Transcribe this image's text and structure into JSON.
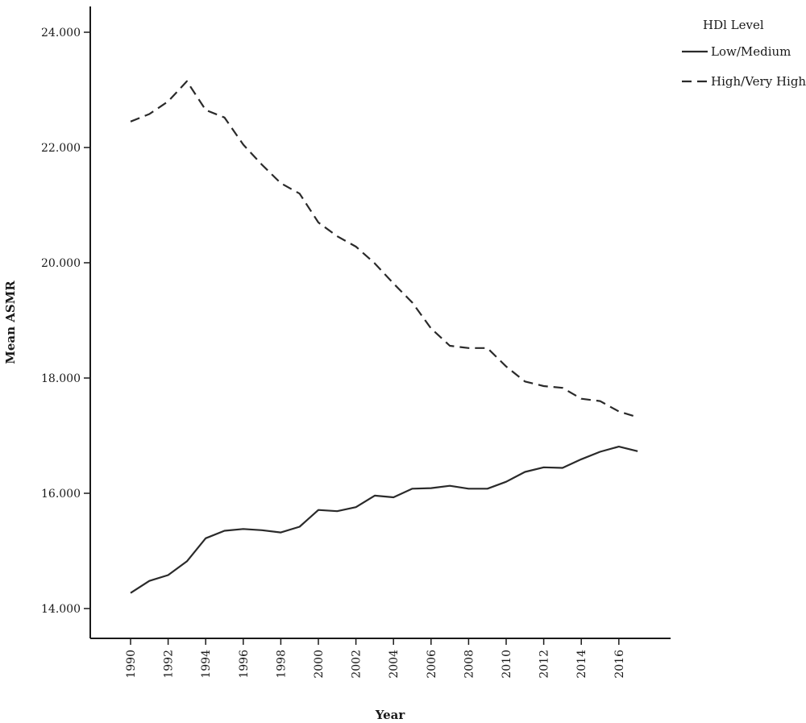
{
  "chart_data": {
    "type": "line",
    "title": "",
    "xlabel": "Year",
    "ylabel": "Mean ASMR",
    "x": [
      1990,
      1991,
      1992,
      1993,
      1994,
      1995,
      1996,
      1997,
      1998,
      1999,
      2000,
      2001,
      2002,
      2003,
      2004,
      2005,
      2006,
      2007,
      2008,
      2009,
      2010,
      2011,
      2012,
      2013,
      2014,
      2015,
      2016,
      2017
    ],
    "xticks": [
      "1990",
      "1992",
      "1994",
      "1996",
      "1998",
      "2000",
      "2002",
      "2004",
      "2006",
      "2008",
      "2010",
      "2012",
      "2014",
      "2016"
    ],
    "ylim": [
      14000,
      24000
    ],
    "yticks": [
      14000,
      16000,
      18000,
      20000,
      22000,
      24000
    ],
    "ytick_labels": [
      "14.000",
      "16.000",
      "18.000",
      "20.000",
      "22.000",
      "24.000"
    ],
    "grid": false,
    "legend": {
      "title": "HDl Level",
      "position": "top-right"
    },
    "series": [
      {
        "name": "Low/Medium",
        "style": "solid",
        "values": [
          14270,
          14480,
          14580,
          14820,
          15220,
          15350,
          15380,
          15360,
          15320,
          15420,
          15710,
          15690,
          15760,
          15960,
          15930,
          16080,
          16090,
          16130,
          16080,
          16080,
          16200,
          16370,
          16450,
          16440,
          16590,
          16720,
          16810,
          16730
        ]
      },
      {
        "name": "High/Very High",
        "style": "dashed",
        "values": [
          22450,
          22580,
          22800,
          23150,
          22650,
          22520,
          22050,
          21700,
          21380,
          21200,
          20700,
          20460,
          20280,
          19990,
          19640,
          19310,
          18860,
          18560,
          18520,
          18520,
          18200,
          17940,
          17860,
          17830,
          17640,
          17600,
          17420,
          17320
        ]
      }
    ],
    "colors": {
      "line": "#2a2a2a",
      "axis": "#1a1a1a",
      "background": "#ffffff"
    }
  }
}
